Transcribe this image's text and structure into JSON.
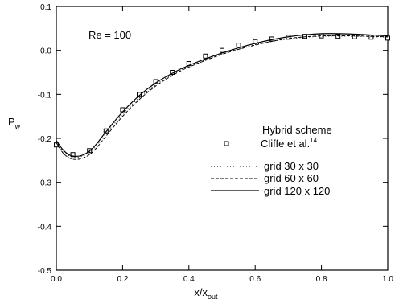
{
  "chart_data": {
    "type": "line",
    "annotation": "Re = 100",
    "xlabel": "x/x",
    "xlabel_sub": "out",
    "ylabel": "P",
    "ylabel_sub": "w",
    "xlim": [
      0.0,
      1.0
    ],
    "ylim": [
      -0.5,
      0.1
    ],
    "xticks": [
      0.0,
      0.2,
      0.4,
      0.6,
      0.8,
      1.0
    ],
    "xtick_labels": [
      "0.0",
      "0.2",
      "0.4",
      "0.6",
      "0.8",
      "1.0"
    ],
    "yticks": [
      -0.5,
      -0.4,
      -0.3,
      -0.2,
      -0.1,
      0.0,
      0.1
    ],
    "ytick_labels": [
      "-0.5",
      "-0.4",
      "-0.3",
      "-0.2",
      "-0.1",
      "0.0",
      "0.1"
    ],
    "grid": false,
    "legend_title": "Hybrid scheme",
    "series": [
      {
        "name": "Cliffe et al.",
        "name_sup": "14",
        "style": "squares",
        "x": [
          0.0,
          0.05,
          0.1,
          0.15,
          0.2,
          0.25,
          0.3,
          0.35,
          0.4,
          0.45,
          0.5,
          0.55,
          0.6,
          0.65,
          0.7,
          0.75,
          0.8,
          0.85,
          0.9,
          0.95,
          1.0
        ],
        "y": [
          -0.215,
          -0.237,
          -0.228,
          -0.183,
          -0.135,
          -0.1,
          -0.071,
          -0.05,
          -0.03,
          -0.013,
          0.0,
          0.012,
          0.02,
          0.026,
          0.03,
          0.032,
          0.033,
          0.032,
          0.031,
          0.03,
          0.028
        ]
      },
      {
        "name": "grid 30 x 30",
        "style": "dotted",
        "x": [
          0.0,
          0.02,
          0.04,
          0.06,
          0.08,
          0.1,
          0.12,
          0.15,
          0.2,
          0.25,
          0.3,
          0.35,
          0.4,
          0.5,
          0.6,
          0.7,
          0.8,
          0.9,
          1.0
        ],
        "y": [
          -0.205,
          -0.228,
          -0.24,
          -0.243,
          -0.24,
          -0.232,
          -0.218,
          -0.19,
          -0.145,
          -0.108,
          -0.078,
          -0.055,
          -0.036,
          -0.008,
          0.013,
          0.026,
          0.032,
          0.032,
          0.03
        ]
      },
      {
        "name": "grid 60 x 60",
        "style": "dashed",
        "x": [
          0.0,
          0.02,
          0.04,
          0.06,
          0.08,
          0.1,
          0.12,
          0.15,
          0.2,
          0.25,
          0.3,
          0.35,
          0.4,
          0.5,
          0.6,
          0.7,
          0.8,
          0.9,
          1.0
        ],
        "y": [
          -0.21,
          -0.233,
          -0.245,
          -0.248,
          -0.245,
          -0.237,
          -0.223,
          -0.195,
          -0.15,
          -0.112,
          -0.081,
          -0.057,
          -0.038,
          -0.009,
          0.012,
          0.027,
          0.033,
          0.033,
          0.031
        ]
      },
      {
        "name": "grid 120 x 120",
        "style": "solid",
        "x": [
          0.0,
          0.02,
          0.04,
          0.06,
          0.08,
          0.1,
          0.12,
          0.15,
          0.2,
          0.25,
          0.3,
          0.35,
          0.4,
          0.5,
          0.6,
          0.7,
          0.8,
          0.9,
          1.0
        ],
        "y": [
          -0.205,
          -0.226,
          -0.238,
          -0.241,
          -0.238,
          -0.229,
          -0.214,
          -0.185,
          -0.14,
          -0.103,
          -0.074,
          -0.052,
          -0.034,
          -0.006,
          0.016,
          0.031,
          0.038,
          0.037,
          0.033
        ]
      }
    ]
  }
}
